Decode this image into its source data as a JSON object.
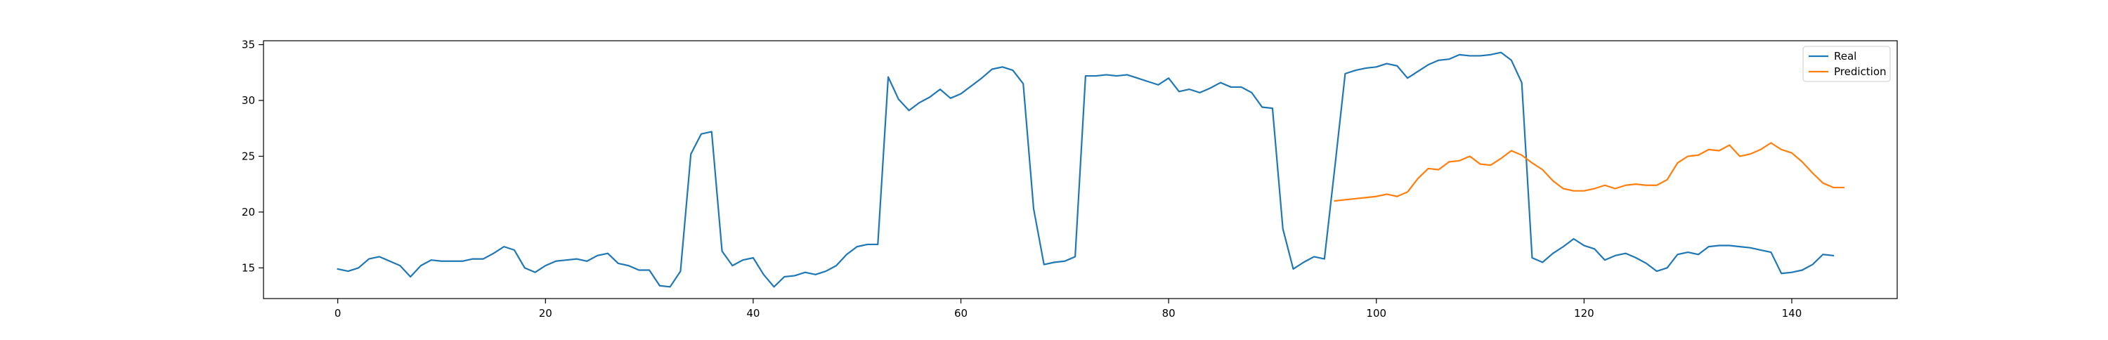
{
  "chart_data": {
    "type": "line",
    "title": "",
    "xlabel": "",
    "ylabel": "",
    "xlim": [
      -7.15,
      150.15
    ],
    "ylim": [
      12.25,
      35.35
    ],
    "xticks": [
      0,
      20,
      40,
      60,
      80,
      100,
      120,
      140
    ],
    "yticks": [
      15,
      20,
      25,
      30,
      35
    ],
    "grid": false,
    "legend_position": "top-right",
    "series": [
      {
        "name": "Real",
        "color": "#1f77b4",
        "x_start": 0,
        "values": [
          14.9,
          14.7,
          15.0,
          15.8,
          16.0,
          15.6,
          15.2,
          14.2,
          15.2,
          15.7,
          15.6,
          15.6,
          15.6,
          15.8,
          15.8,
          16.3,
          16.9,
          16.6,
          15.0,
          14.6,
          15.2,
          15.6,
          15.7,
          15.8,
          15.6,
          16.1,
          16.3,
          15.4,
          15.2,
          14.8,
          14.8,
          13.4,
          13.3,
          14.7,
          25.2,
          27.0,
          27.2,
          16.5,
          15.2,
          15.7,
          15.9,
          14.4,
          13.3,
          14.2,
          14.3,
          14.6,
          14.4,
          14.7,
          15.2,
          16.2,
          16.9,
          17.1,
          17.1,
          32.1,
          30.1,
          29.1,
          29.8,
          30.3,
          31.0,
          30.2,
          30.6,
          31.3,
          32.0,
          32.8,
          33.0,
          32.7,
          31.5,
          20.3,
          15.3,
          15.5,
          15.6,
          16.0,
          32.2,
          32.2,
          32.3,
          32.2,
          32.3,
          32.0,
          31.7,
          31.4,
          32.0,
          30.8,
          31.0,
          30.7,
          31.1,
          31.6,
          31.2,
          31.2,
          30.7,
          29.4,
          29.3,
          18.5,
          14.9,
          15.5,
          16.0,
          15.8,
          24.0,
          32.4,
          32.7,
          32.9,
          33.0,
          33.3,
          33.1,
          32.0,
          32.6,
          33.2,
          33.6,
          33.7,
          34.1,
          34.0,
          34.0,
          34.1,
          34.3,
          33.6,
          31.6,
          15.9,
          15.5,
          16.3,
          16.9,
          17.6,
          17.0,
          16.7,
          15.7,
          16.1,
          16.3,
          15.9,
          15.4,
          14.7,
          15.0,
          16.2,
          16.4,
          16.2,
          16.9,
          17.0,
          17.0,
          16.9,
          16.8,
          16.6,
          16.4,
          14.5,
          14.6,
          14.8,
          15.3,
          16.2,
          16.1
        ]
      },
      {
        "name": "Prediction",
        "color": "#ff7f0e",
        "x_start": 96,
        "values": [
          21.0,
          21.1,
          21.2,
          21.3,
          21.4,
          21.6,
          21.4,
          21.8,
          23.0,
          23.9,
          23.8,
          24.5,
          24.6,
          25.0,
          24.3,
          24.2,
          24.8,
          25.5,
          25.1,
          24.4,
          23.8,
          22.8,
          22.1,
          21.9,
          21.9,
          22.1,
          22.4,
          22.1,
          22.4,
          22.5,
          22.4,
          22.4,
          22.9,
          24.4,
          25.0,
          25.1,
          25.6,
          25.5,
          26.0,
          25.0,
          25.2,
          25.6,
          26.2,
          25.6,
          25.3,
          24.5,
          23.5,
          22.6,
          22.2,
          22.2
        ]
      }
    ]
  }
}
